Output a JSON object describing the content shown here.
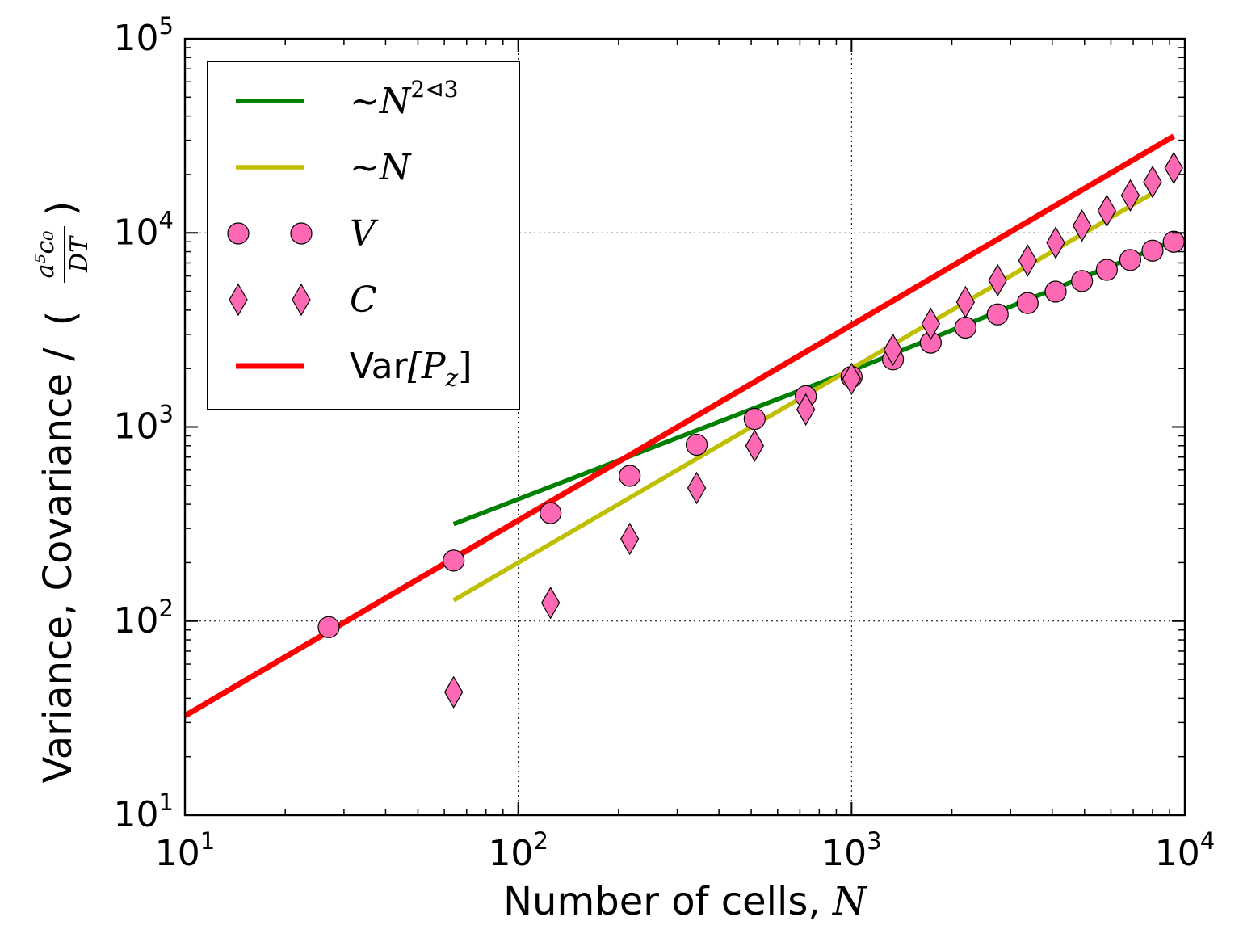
{
  "chart_data": {
    "type": "scatter",
    "x_scale": "log",
    "y_scale": "log",
    "xlim": [
      10,
      10000
    ],
    "ylim": [
      10,
      100000
    ],
    "grid": true,
    "legend_position": "top-left",
    "xlabel": {
      "text": "Number of cells, ",
      "math": "N"
    },
    "ylabel": {
      "text": "Variance, Covariance / ",
      "math_numerator": "a⁵c₀",
      "math_denominator": "DT"
    },
    "x_ticks": [
      {
        "value": 10,
        "base": "10",
        "exp": "1"
      },
      {
        "value": 100,
        "base": "10",
        "exp": "2"
      },
      {
        "value": 1000,
        "base": "10",
        "exp": "3"
      },
      {
        "value": 10000,
        "base": "10",
        "exp": "4"
      }
    ],
    "y_ticks": [
      {
        "value": 10,
        "base": "10",
        "exp": "1"
      },
      {
        "value": 100,
        "base": "10",
        "exp": "2"
      },
      {
        "value": 1000,
        "base": "10",
        "exp": "3"
      },
      {
        "value": 10000,
        "base": "10",
        "exp": "4"
      },
      {
        "value": 100000,
        "base": "10",
        "exp": "5"
      }
    ],
    "series": [
      {
        "name": "∼N^{2⊲3}",
        "legend": {
          "prefix": "∼",
          "math": "N",
          "sup": "2⊲3"
        },
        "kind": "line",
        "color": "#008000",
        "x": [
          64,
          1000,
          9261
        ],
        "y": [
          316,
          1950,
          9100
        ]
      },
      {
        "name": "∼N",
        "legend": {
          "prefix": "∼",
          "math": "N",
          "sup": ""
        },
        "kind": "line",
        "color": "#bfbf00",
        "x": [
          64,
          8000
        ],
        "y": [
          128,
          16000
        ]
      },
      {
        "name": "V",
        "legend": {
          "prefix": "",
          "math": "V",
          "sup": ""
        },
        "kind": "marker",
        "marker": "circle",
        "color": "#ff69b4",
        "x": [
          27,
          64,
          125,
          216,
          343,
          512,
          729,
          1000,
          1331,
          1728,
          2197,
          2744,
          3375,
          4096,
          4913,
          5832,
          6859,
          8000,
          9261
        ],
        "y": [
          93,
          205,
          360,
          560,
          810,
          1100,
          1440,
          1810,
          2230,
          2720,
          3250,
          3800,
          4350,
          4980,
          5650,
          6450,
          7250,
          8100,
          9000
        ]
      },
      {
        "name": "C",
        "legend": {
          "prefix": "",
          "math": "C",
          "sup": ""
        },
        "kind": "marker",
        "marker": "diamond",
        "color": "#ff69b4",
        "x": [
          64,
          125,
          216,
          343,
          512,
          729,
          1000,
          1331,
          1728,
          2197,
          2744,
          3375,
          4096,
          4913,
          5832,
          6859,
          8000,
          9261
        ],
        "y": [
          43,
          124,
          265,
          485,
          800,
          1230,
          1770,
          2500,
          3400,
          4400,
          5700,
          7200,
          8900,
          10900,
          13000,
          15600,
          18300,
          21600
        ]
      },
      {
        "name": "Var[P_z]",
        "legend": {
          "prefix": "Var",
          "math": "[P",
          "sub": "z",
          "suffix": "]"
        },
        "kind": "line",
        "color": "#ff0000",
        "x": [
          10,
          9261
        ],
        "y": [
          32.5,
          31500
        ]
      }
    ]
  }
}
